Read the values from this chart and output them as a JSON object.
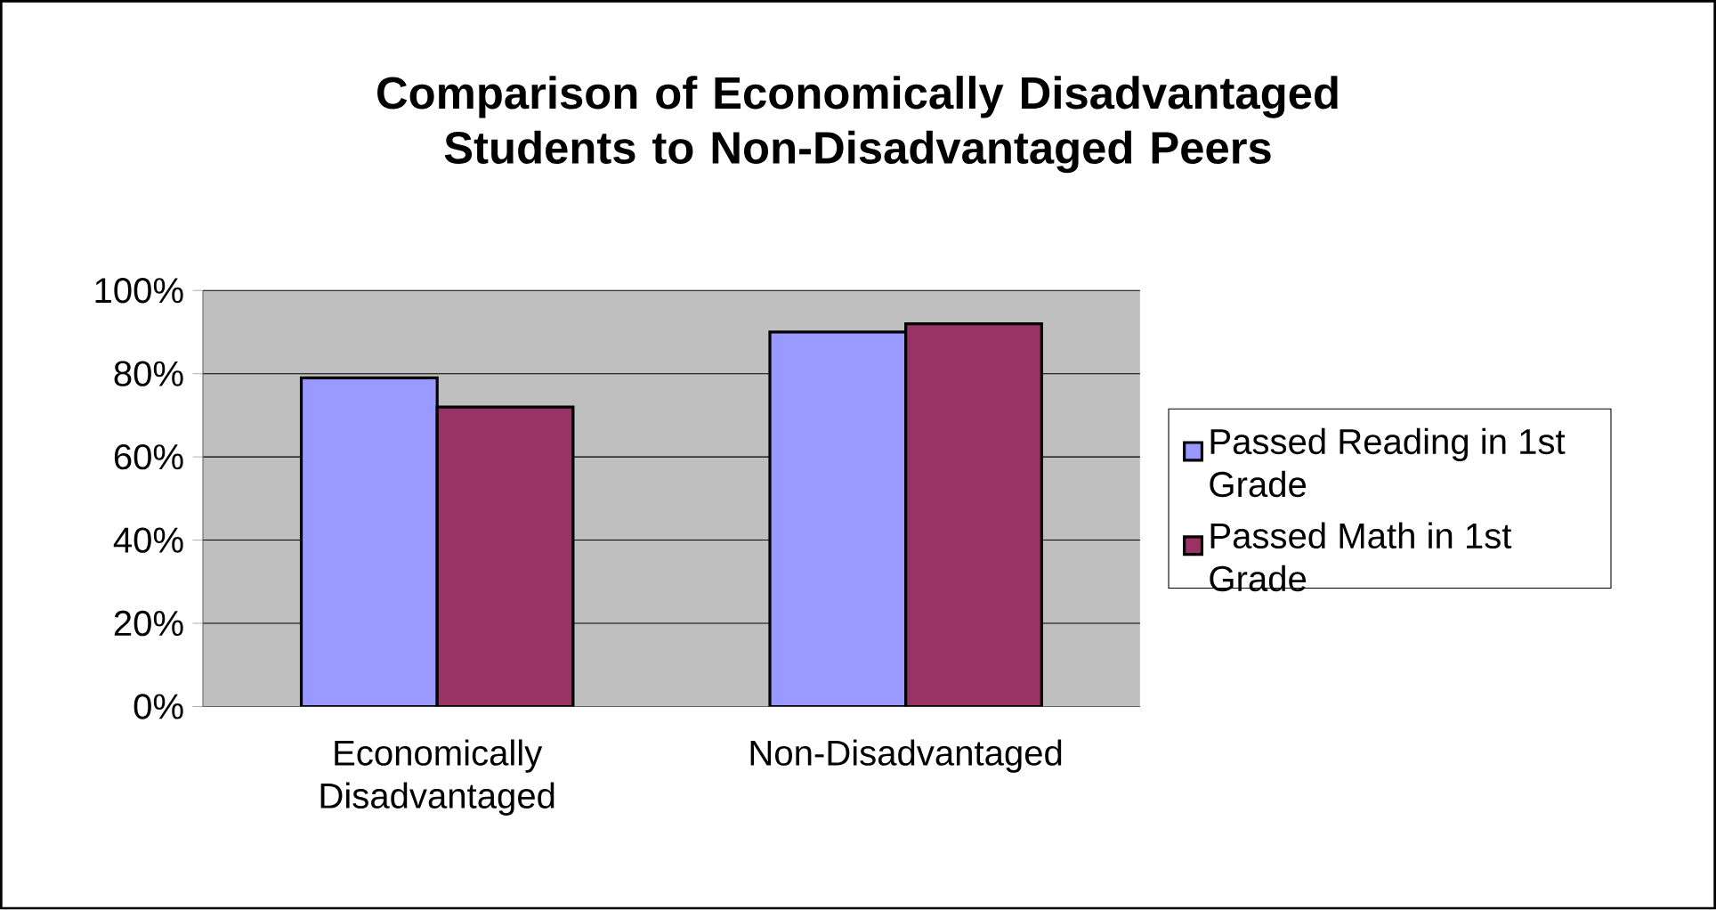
{
  "chart_data": {
    "type": "bar",
    "title": "Comparison of Economically Disadvantaged Students to Non-Disadvantaged Peers",
    "categories": [
      "Economically Disadvantaged",
      "Non-Disadvantaged"
    ],
    "series": [
      {
        "name": "Passed Reading in 1st Grade",
        "color": "#9999ff",
        "values": [
          79,
          90
        ]
      },
      {
        "name": "Passed Math in 1st Grade",
        "color": "#993366",
        "values": [
          72,
          92
        ]
      }
    ],
    "ylim": [
      0,
      100
    ],
    "yticks": [
      {
        "value": 0,
        "label": "0%"
      },
      {
        "value": 20,
        "label": "20%"
      },
      {
        "value": 40,
        "label": "40%"
      },
      {
        "value": 60,
        "label": "60%"
      },
      {
        "value": 80,
        "label": "80%"
      },
      {
        "value": 100,
        "label": "100%"
      }
    ],
    "grid": "y",
    "legend": "right"
  }
}
